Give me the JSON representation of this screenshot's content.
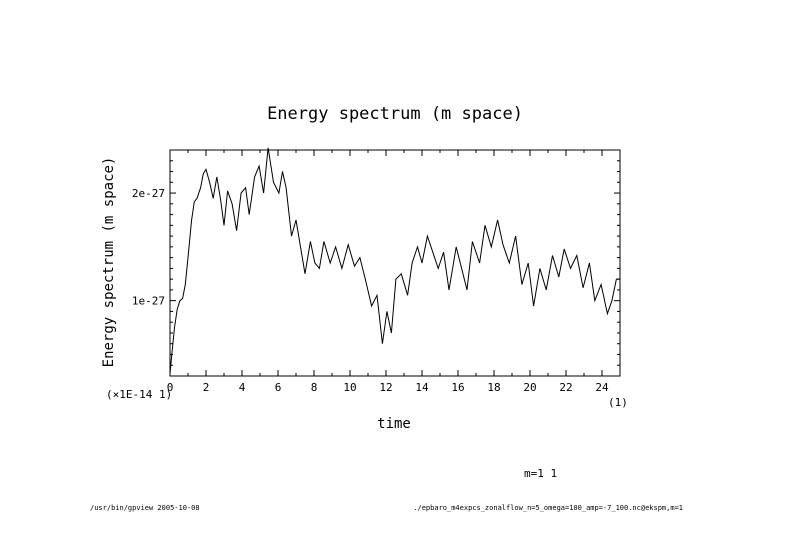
{
  "footer": {
    "left": "/usr/bin/gpview  2005-10-08",
    "right": "./epbaro_m4expcs_zonalflow_n=5_omega=100_amp=-7_100.nc@ekspm,m=1"
  },
  "annotation": "m=1 1",
  "chart_data": {
    "type": "line",
    "title": "Energy spectrum (m space)",
    "xlabel": "time",
    "ylabel": "Energy spectrum (m space)",
    "x_units": "(1)",
    "y_units": "(×1E-14 1)",
    "xlim": [
      0,
      25
    ],
    "ylim": [
      3e-28,
      2.4e-27
    ],
    "x_ticks": [
      0,
      2,
      4,
      6,
      8,
      10,
      12,
      14,
      16,
      18,
      20,
      22,
      24
    ],
    "x_tick_labels": [
      "0",
      "2",
      "4",
      "6",
      "8",
      "10",
      "12",
      "14",
      "16",
      "18",
      "20",
      "22",
      "24"
    ],
    "y_ticks": [
      1e-27,
      2e-27
    ],
    "y_tick_labels": [
      "1e-27",
      "2e-27"
    ],
    "grid": false,
    "series": [
      {
        "name": "m=1 1",
        "x": [
          0,
          0.1,
          0.25,
          0.4,
          0.55,
          0.7,
          0.85,
          1.0,
          1.2,
          1.35,
          1.5,
          1.7,
          1.85,
          2.0,
          2.2,
          2.4,
          2.6,
          2.8,
          3.0,
          3.2,
          3.45,
          3.7,
          3.95,
          4.2,
          4.4,
          4.7,
          4.95,
          5.2,
          5.45,
          5.75,
          6.05,
          6.25,
          6.45,
          6.75,
          7.0,
          7.25,
          7.5,
          7.8,
          8.05,
          8.3,
          8.55,
          8.9,
          9.2,
          9.55,
          9.9,
          10.25,
          10.55,
          10.85,
          11.2,
          11.5,
          11.8,
          12.05,
          12.3,
          12.55,
          12.85,
          13.2,
          13.45,
          13.75,
          14.0,
          14.3,
          14.6,
          14.9,
          15.2,
          15.5,
          15.9,
          16.2,
          16.5,
          16.8,
          17.2,
          17.5,
          17.85,
          18.2,
          18.5,
          18.85,
          19.2,
          19.55,
          19.9,
          20.2,
          20.55,
          20.9,
          21.25,
          21.6,
          21.9,
          22.25,
          22.6,
          22.95,
          23.3,
          23.6,
          23.95,
          24.3,
          24.55,
          24.8,
          25.0
        ],
        "y": [
          3.2e-28,
          5e-28,
          7.5e-28,
          9.2e-28,
          1e-27,
          1.02e-27,
          1.15e-27,
          1.4e-27,
          1.75e-27,
          1.92e-27,
          1.95e-27,
          2.05e-27,
          2.18e-27,
          2.22e-27,
          2.1e-27,
          1.95e-27,
          2.15e-27,
          1.95e-27,
          1.7e-27,
          2.02e-27,
          1.9e-27,
          1.65e-27,
          2e-27,
          2.05e-27,
          1.8e-27,
          2.15e-27,
          2.25e-27,
          2e-27,
          2.42e-27,
          2.1e-27,
          2e-27,
          2.2e-27,
          2.05e-27,
          1.6e-27,
          1.75e-27,
          1.5e-27,
          1.25e-27,
          1.55e-27,
          1.35e-27,
          1.3e-27,
          1.55e-27,
          1.35e-27,
          1.5e-27,
          1.3e-27,
          1.52e-27,
          1.32e-27,
          1.4e-27,
          1.2e-27,
          9.5e-28,
          1.05e-27,
          6e-28,
          9e-28,
          7e-28,
          1.2e-27,
          1.25e-27,
          1.05e-27,
          1.35e-27,
          1.5e-27,
          1.35e-27,
          1.6e-27,
          1.45e-27,
          1.3e-27,
          1.45e-27,
          1.1e-27,
          1.5e-27,
          1.3e-27,
          1.1e-27,
          1.55e-27,
          1.35e-27,
          1.7e-27,
          1.5e-27,
          1.75e-27,
          1.52e-27,
          1.35e-27,
          1.6e-27,
          1.15e-27,
          1.35e-27,
          9.5e-28,
          1.3e-27,
          1.1e-27,
          1.42e-27,
          1.22e-27,
          1.48e-27,
          1.3e-27,
          1.42e-27,
          1.12e-27,
          1.35e-27,
          1e-27,
          1.15e-27,
          8.8e-28,
          1e-27,
          1.2e-27,
          1.2e-27
        ]
      }
    ]
  }
}
